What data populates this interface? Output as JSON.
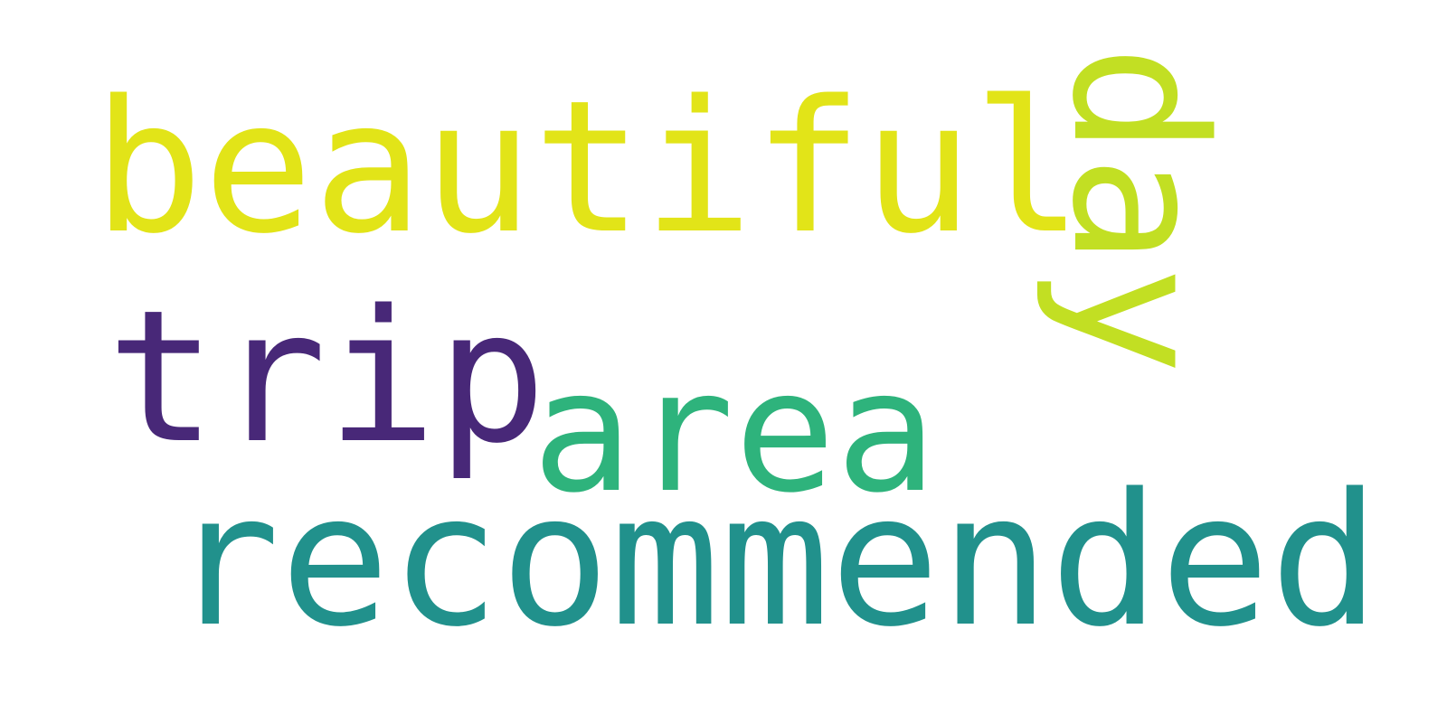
{
  "words": [
    {
      "text": "beautiful",
      "color": "#e2e418",
      "orientation": "horizontal"
    },
    {
      "text": "trip",
      "color": "#482878",
      "orientation": "horizontal"
    },
    {
      "text": "area",
      "color": "#2eb37c",
      "orientation": "horizontal"
    },
    {
      "text": "recommended",
      "color": "#21918c",
      "orientation": "horizontal"
    },
    {
      "text": "day",
      "color": "#c2df23",
      "orientation": "vertical"
    }
  ]
}
